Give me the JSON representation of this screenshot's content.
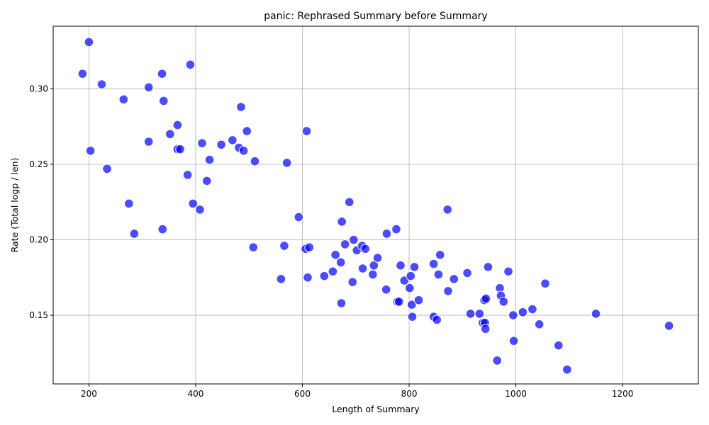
{
  "chart_data": {
    "type": "scatter",
    "title": "panic: Rephrased Summary before Summary",
    "xlabel": "Length of Summary",
    "ylabel": "Rate (Total logp / len)",
    "xlim": [
      133,
      1342
    ],
    "ylim": [
      0.1045,
      0.3415
    ],
    "xticks": [
      200,
      400,
      600,
      800,
      1000,
      1200
    ],
    "yticks": [
      0.15,
      0.2,
      0.25,
      0.3
    ],
    "xtick_labels": [
      "200",
      "400",
      "600",
      "800",
      "1000",
      "1200"
    ],
    "ytick_labels": [
      "0.15",
      "0.20",
      "0.25",
      "0.30"
    ],
    "grid": true,
    "point_color": "#0000ff",
    "point_alpha": 0.7,
    "series": [
      {
        "points": [
          [
            200,
            0.331
          ],
          [
            188,
            0.31
          ],
          [
            224,
            0.303
          ],
          [
            265,
            0.293
          ],
          [
            203,
            0.259
          ],
          [
            234,
            0.247
          ],
          [
            275,
            0.224
          ],
          [
            285,
            0.204
          ],
          [
            312,
            0.301
          ],
          [
            337,
            0.31
          ],
          [
            340,
            0.292
          ],
          [
            390,
            0.316
          ],
          [
            312,
            0.265
          ],
          [
            352,
            0.27
          ],
          [
            366,
            0.276
          ],
          [
            366,
            0.26
          ],
          [
            371,
            0.26
          ],
          [
            385,
            0.243
          ],
          [
            395,
            0.224
          ],
          [
            408,
            0.22
          ],
          [
            412,
            0.264
          ],
          [
            421,
            0.239
          ],
          [
            426,
            0.253
          ],
          [
            338,
            0.207
          ],
          [
            448,
            0.263
          ],
          [
            469,
            0.266
          ],
          [
            481,
            0.261
          ],
          [
            490,
            0.259
          ],
          [
            485,
            0.288
          ],
          [
            496,
            0.272
          ],
          [
            511,
            0.252
          ],
          [
            508,
            0.195
          ],
          [
            560,
            0.174
          ],
          [
            566,
            0.196
          ],
          [
            571,
            0.251
          ],
          [
            593,
            0.215
          ],
          [
            606,
            0.194
          ],
          [
            610,
            0.175
          ],
          [
            613,
            0.195
          ],
          [
            608,
            0.272
          ],
          [
            641,
            0.176
          ],
          [
            657,
            0.179
          ],
          [
            662,
            0.19
          ],
          [
            672,
            0.185
          ],
          [
            674,
            0.212
          ],
          [
            680,
            0.197
          ],
          [
            688,
            0.225
          ],
          [
            694,
            0.172
          ],
          [
            696,
            0.2
          ],
          [
            702,
            0.193
          ],
          [
            673,
            0.158
          ],
          [
            712,
            0.196
          ],
          [
            713,
            0.181
          ],
          [
            718,
            0.194
          ],
          [
            732,
            0.177
          ],
          [
            734,
            0.183
          ],
          [
            741,
            0.188
          ],
          [
            757,
            0.167
          ],
          [
            758,
            0.204
          ],
          [
            776,
            0.207
          ],
          [
            778,
            0.159
          ],
          [
            781,
            0.159
          ],
          [
            784,
            0.183
          ],
          [
            791,
            0.173
          ],
          [
            801,
            0.168
          ],
          [
            803,
            0.176
          ],
          [
            805,
            0.157
          ],
          [
            806,
            0.149
          ],
          [
            810,
            0.182
          ],
          [
            818,
            0.16
          ],
          [
            846,
            0.149
          ],
          [
            846,
            0.184
          ],
          [
            852,
            0.147
          ],
          [
            855,
            0.177
          ],
          [
            858,
            0.19
          ],
          [
            872,
            0.22
          ],
          [
            873,
            0.166
          ],
          [
            884,
            0.174
          ],
          [
            909,
            0.178
          ],
          [
            915,
            0.151
          ],
          [
            932,
            0.151
          ],
          [
            938,
            0.145
          ],
          [
            941,
            0.16
          ],
          [
            942,
            0.145
          ],
          [
            943,
            0.141
          ],
          [
            944,
            0.161
          ],
          [
            948,
            0.182
          ],
          [
            965,
            0.12
          ],
          [
            970,
            0.168
          ],
          [
            972,
            0.163
          ],
          [
            977,
            0.159
          ],
          [
            986,
            0.179
          ],
          [
            995,
            0.15
          ],
          [
            996,
            0.133
          ],
          [
            1013,
            0.152
          ],
          [
            1031,
            0.154
          ],
          [
            1044,
            0.144
          ],
          [
            1055,
            0.171
          ],
          [
            1080,
            0.13
          ],
          [
            1096,
            0.114
          ],
          [
            1150,
            0.151
          ],
          [
            1287,
            0.143
          ]
        ]
      }
    ]
  }
}
